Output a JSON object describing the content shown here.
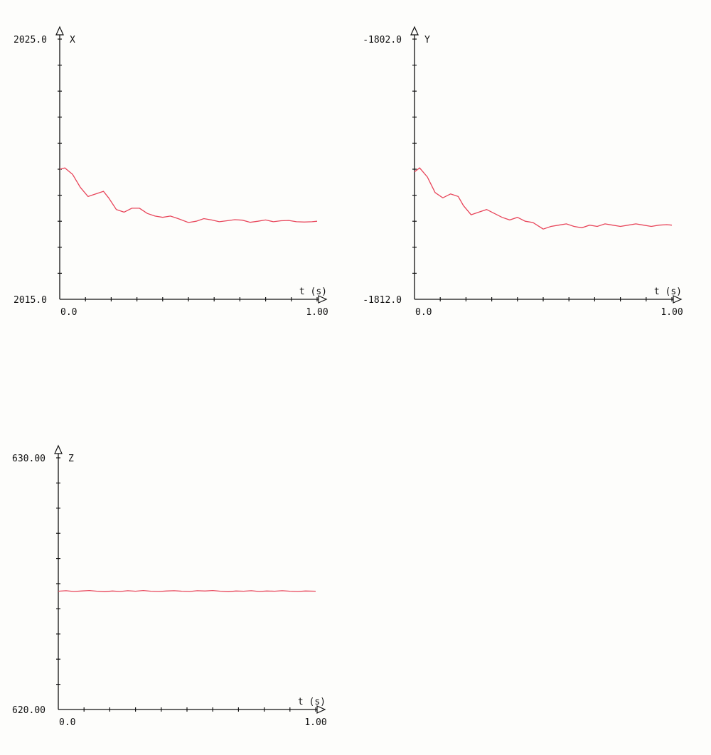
{
  "chart_data": [
    {
      "type": "line",
      "ylabel": "X",
      "xlabel": "t (s)",
      "ylim": [
        2015.0,
        2025.0
      ],
      "y_tick_labels": [
        "2025.0",
        "2015.0"
      ],
      "xlim": [
        0.0,
        1.0
      ],
      "x_tick_labels": [
        "0.0",
        "1.00"
      ],
      "color": "#e8455a",
      "series": [
        {
          "x": [
            0.0,
            0.02,
            0.05,
            0.08,
            0.11,
            0.14,
            0.17,
            0.19,
            0.22,
            0.25,
            0.28,
            0.31,
            0.34,
            0.37,
            0.4,
            0.43,
            0.46,
            0.5,
            0.53,
            0.56,
            0.59,
            0.62,
            0.65,
            0.68,
            0.71,
            0.74,
            0.77,
            0.8,
            0.83,
            0.86,
            0.89,
            0.92,
            0.95,
            0.98,
            1.0
          ],
          "y": [
            2020.0,
            2020.05,
            2019.8,
            2019.3,
            2018.95,
            2019.05,
            2019.15,
            2018.9,
            2018.45,
            2018.35,
            2018.5,
            2018.5,
            2018.3,
            2018.2,
            2018.15,
            2018.2,
            2018.1,
            2017.95,
            2018.0,
            2018.1,
            2018.05,
            2017.98,
            2018.02,
            2018.06,
            2018.04,
            2017.96,
            2018.0,
            2018.05,
            2017.98,
            2018.02,
            2018.03,
            2017.98,
            2017.97,
            2017.98,
            2018.0
          ]
        }
      ]
    },
    {
      "type": "line",
      "ylabel": "Y",
      "xlabel": "t (s)",
      "ylim": [
        -1812.0,
        -1802.0
      ],
      "y_tick_labels": [
        "-1802.0",
        "-1812.0"
      ],
      "xlim": [
        0.0,
        1.0
      ],
      "x_tick_labels": [
        "0.0",
        "1.00"
      ],
      "color": "#e8455a",
      "series": [
        {
          "x": [
            0.0,
            0.02,
            0.05,
            0.08,
            0.11,
            0.14,
            0.17,
            0.19,
            0.22,
            0.25,
            0.28,
            0.31,
            0.34,
            0.37,
            0.4,
            0.43,
            0.46,
            0.5,
            0.53,
            0.56,
            0.59,
            0.62,
            0.65,
            0.68,
            0.71,
            0.74,
            0.77,
            0.8,
            0.83,
            0.86,
            0.89,
            0.92,
            0.95,
            0.98,
            1.0
          ],
          "y": [
            -1807.1,
            -1806.95,
            -1807.3,
            -1807.9,
            -1808.1,
            -1807.95,
            -1808.05,
            -1808.4,
            -1808.75,
            -1808.65,
            -1808.55,
            -1808.7,
            -1808.85,
            -1808.95,
            -1808.85,
            -1809.0,
            -1809.05,
            -1809.3,
            -1809.2,
            -1809.15,
            -1809.1,
            -1809.2,
            -1809.25,
            -1809.15,
            -1809.2,
            -1809.1,
            -1809.15,
            -1809.2,
            -1809.15,
            -1809.1,
            -1809.15,
            -1809.2,
            -1809.15,
            -1809.13,
            -1809.15
          ]
        }
      ]
    },
    {
      "type": "line",
      "ylabel": "Z",
      "xlabel": "t (s)",
      "ylim": [
        620.0,
        630.0
      ],
      "y_tick_labels": [
        "630.00",
        "620.00"
      ],
      "xlim": [
        0.0,
        1.0
      ],
      "x_tick_labels": [
        "0.0",
        "1.00"
      ],
      "color": "#e8455a",
      "series": [
        {
          "x": [
            0.0,
            0.03,
            0.06,
            0.09,
            0.12,
            0.15,
            0.18,
            0.21,
            0.24,
            0.27,
            0.3,
            0.33,
            0.36,
            0.39,
            0.42,
            0.45,
            0.48,
            0.51,
            0.54,
            0.57,
            0.6,
            0.63,
            0.66,
            0.69,
            0.72,
            0.75,
            0.78,
            0.81,
            0.84,
            0.87,
            0.9,
            0.93,
            0.96,
            1.0
          ],
          "y": [
            624.7,
            624.72,
            624.69,
            624.71,
            624.73,
            624.7,
            624.68,
            624.71,
            624.69,
            624.72,
            624.7,
            624.73,
            624.7,
            624.69,
            624.71,
            624.72,
            624.7,
            624.69,
            624.72,
            624.71,
            624.73,
            624.7,
            624.68,
            624.71,
            624.7,
            624.72,
            624.69,
            624.71,
            624.7,
            624.72,
            624.7,
            624.69,
            624.71,
            624.7
          ]
        }
      ]
    }
  ]
}
